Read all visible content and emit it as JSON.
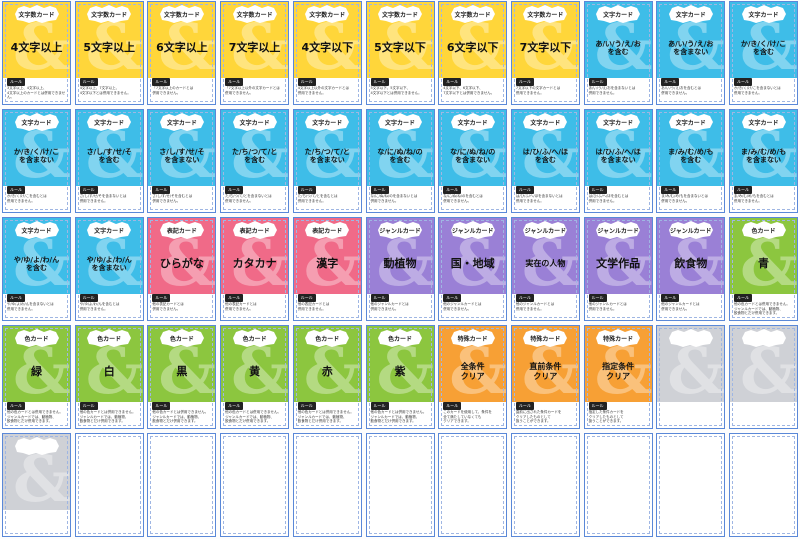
{
  "colors": {
    "yellow": "#ffd63a",
    "blue": "#3ebde8",
    "pink": "#f06a88",
    "purple": "#9a80d6",
    "green": "#8cc63f",
    "orange": "#f7a035",
    "gray": "#cfd1d6",
    "cut_line": "#e070a8",
    "bleed_line": "#5a88d8"
  },
  "rule_label": "ルール",
  "cards": [
    {
      "color": "yellow",
      "type": "文字数カード",
      "main": "4文字以上",
      "size": "big",
      "desc": "3文字以上、4文字以上、\n4文字以上のカードとは併用できません。"
    },
    {
      "color": "yellow",
      "type": "文字数カード",
      "main": "5文字以上",
      "size": "big",
      "desc": "4文字以上、7文字以上、\n4文字以下とは併用できません。"
    },
    {
      "color": "yellow",
      "type": "文字数カード",
      "main": "6文字以上",
      "size": "big",
      "desc": "「7文字以上のカードとは\n併用できません。"
    },
    {
      "color": "yellow",
      "type": "文字数カード",
      "main": "7文字以上",
      "size": "big",
      "desc": "「7文字以上以外の文字カードとは\n併用できません。"
    },
    {
      "color": "yellow",
      "type": "文字数カード",
      "main": "4文字以下",
      "size": "big",
      "desc": "4文字以上以外の文字カードとは\n併用できません。"
    },
    {
      "color": "yellow",
      "type": "文字数カード",
      "main": "5文字以下",
      "size": "big",
      "desc": "5文字以下、5文字以下、\n4文字以下とは併用できません。"
    },
    {
      "color": "yellow",
      "type": "文字数カード",
      "main": "6文字以下",
      "size": "big",
      "desc": "4文字以下、6文字以下、\n7文字以下とは併用できません。"
    },
    {
      "color": "yellow",
      "type": "文字数カード",
      "main": "7文字以下",
      "size": "big",
      "desc": "7文字以下の文字カードとは\n併用できません。"
    },
    {
      "color": "blue",
      "type": "文字カード",
      "main": "あ/い/う/え/お\nを含む",
      "size": "small",
      "desc": "あ/い/う/え/おを含まないとは\n併用できません。"
    },
    {
      "color": "blue",
      "type": "文字カード",
      "main": "あ/い/う/え/お\nを含まない",
      "size": "small",
      "desc": "あ/い/う/え/おを含むとは\n併用できません。"
    },
    {
      "color": "blue",
      "type": "文字カード",
      "main": "か/き/く/け/こ\nを含む",
      "size": "small",
      "desc": "か/き/く/け/こを含まないとは\n併用できません。"
    },
    {
      "color": "blue",
      "type": "文字カード",
      "main": "か/き/く/け/こ\nを含まない",
      "size": "small",
      "desc": "か/き/く/け/こを含むとは\n併用できません。"
    },
    {
      "color": "blue",
      "type": "文字カード",
      "main": "さ/し/す/せ/そ\nを含む",
      "size": "small",
      "desc": "さ/し/す/せ/そを含まないとは\n併用できません。"
    },
    {
      "color": "blue",
      "type": "文字カード",
      "main": "さ/し/す/せ/そ\nを含まない",
      "size": "small",
      "desc": "さ/し/す/せ/そを含むとは\n併用できません。"
    },
    {
      "color": "blue",
      "type": "文字カード",
      "main": "た/ち/つ/て/と\nを含む",
      "size": "small",
      "desc": "た/ち/つ/て/とを含まないとは\n併用できません。"
    },
    {
      "color": "blue",
      "type": "文字カード",
      "main": "た/ち/つ/て/と\nを含まない",
      "size": "small",
      "desc": "た/ち/つ/て/とを含むとは\n併用できません。"
    },
    {
      "color": "blue",
      "type": "文字カード",
      "main": "な/に/ぬ/ね/の\nを含む",
      "size": "small",
      "desc": "な/に/ぬ/ね/のを含まないとは\n併用できません。"
    },
    {
      "color": "blue",
      "type": "文字カード",
      "main": "な/に/ぬ/ね/の\nを含まない",
      "size": "small",
      "desc": "な/に/ぬ/ね/のを含むとは\n併用できません。"
    },
    {
      "color": "blue",
      "type": "文字カード",
      "main": "は/ひ/ふ/へ/ほ\nを含む",
      "size": "small",
      "desc": "は/ひ/ふ/へ/ほを含まないとは\n併用できません。"
    },
    {
      "color": "blue",
      "type": "文字カード",
      "main": "は/ひ/ふ/へ/ほ\nを含まない",
      "size": "small",
      "desc": "は/ひ/ふ/へ/ほを含むとは\n併用できません。"
    },
    {
      "color": "blue",
      "type": "文字カード",
      "main": "ま/み/む/め/も\nを含む",
      "size": "small",
      "desc": "ま/み/む/め/もを含まないとは\n併用できません。"
    },
    {
      "color": "blue",
      "type": "文字カード",
      "main": "ま/み/む/め/も\nを含まない",
      "size": "small",
      "desc": "ま/み/む/め/もを含むとは\n併用できません。"
    },
    {
      "color": "blue",
      "type": "文字カード",
      "main": "や/ゆ/よ/わ/ん\nを含む",
      "size": "small",
      "desc": "や/ゆ/よ/わ/んを含まないとは\n併用できません。"
    },
    {
      "color": "blue",
      "type": "文字カード",
      "main": "や/ゆ/よ/わ/ん\nを含まない",
      "size": "small",
      "desc": "や/ゆ/よ/わ/んを含むとは\n併用できません。"
    },
    {
      "color": "pink",
      "type": "表記カード",
      "main": "ひらがな",
      "size": "big",
      "desc": "他の表記カードとは\n併用できません。"
    },
    {
      "color": "pink",
      "type": "表記カード",
      "main": "カタカナ",
      "size": "big",
      "desc": "他の表記カードとは\n併用できません。"
    },
    {
      "color": "pink",
      "type": "表記カード",
      "main": "漢字",
      "size": "big",
      "desc": "他の表記カードとは\n併用できません。"
    },
    {
      "color": "purple",
      "type": "ジャンルカード",
      "main": "動植物",
      "size": "big",
      "desc": "他のジャンルカードとは\n併用できません。"
    },
    {
      "color": "purple",
      "type": "ジャンルカード",
      "main": "国・地域",
      "size": "big",
      "desc": "他のジャンルカードとは\n併用できません。"
    },
    {
      "color": "purple",
      "type": "ジャンルカード",
      "main": "実在の人物",
      "size": "mid",
      "desc": "他のジャンルカードとは\n併用できません。"
    },
    {
      "color": "purple",
      "type": "ジャンルカード",
      "main": "文学作品",
      "size": "big",
      "desc": "他のジャンルカードとは\n併用できません。"
    },
    {
      "color": "purple",
      "type": "ジャンルカード",
      "main": "飲食物",
      "size": "big",
      "desc": "他のジャンルカードとは\n併用できません。"
    },
    {
      "color": "green",
      "type": "色カード",
      "main": "青",
      "size": "big",
      "desc": "他の色カードとは併用できません。\nジャンルカードでは、動植物、\n飲食物とだけ併用できます。"
    },
    {
      "color": "green",
      "type": "色カード",
      "main": "緑",
      "size": "big",
      "desc": "他の色カードとは併用できません。\nジャンルカードでは、動植物、\n飲食物とだけ併用できます。"
    },
    {
      "color": "green",
      "type": "色カード",
      "main": "白",
      "size": "big",
      "desc": "他の色カードとは併用できません。\nジャンルカードでは、動植物、\n飲食物とだけ併用できます。"
    },
    {
      "color": "green",
      "type": "色カード",
      "main": "黒",
      "size": "big",
      "desc": "他の色カードとは併用できません。\nジャンルカードでは、動植物、\n飲食物とだけ併用できます。"
    },
    {
      "color": "green",
      "type": "色カード",
      "main": "黄",
      "size": "big",
      "desc": "他の色カードとは併用できません。\nジャンルカードでは、動植物、\n飲食物とだけ併用できます。"
    },
    {
      "color": "green",
      "type": "色カード",
      "main": "赤",
      "size": "big",
      "desc": "他の色カードとは併用できません。\nジャンルカードでは、動植物、\n飲食物とだけ併用できます。"
    },
    {
      "color": "green",
      "type": "色カード",
      "main": "紫",
      "size": "big",
      "desc": "他の色カードとは併用できません。\nジャンルカードでは、動植物、\n飲食物とだけ併用できます。"
    },
    {
      "color": "orange",
      "type": "特殊カード",
      "main": "全条件\nクリア",
      "size": "mid",
      "desc": "このカードを使用して、条件を\n全て満たしていなくても\nクリアできます。"
    },
    {
      "color": "orange",
      "type": "特殊カード",
      "main": "直前条件\nクリア",
      "size": "mid",
      "desc": "直前に出された条件カードを\nクリアしたものとして\n扱うことができます。"
    },
    {
      "color": "orange",
      "type": "特殊カード",
      "main": "指定条件\nクリア",
      "size": "mid",
      "desc": "指定した条件カードを\nクリアしたものとして\n扱うことができます。"
    },
    {
      "color": "gray",
      "type": "",
      "main": "",
      "size": "big",
      "desc": ""
    },
    {
      "color": "gray",
      "type": "",
      "main": "",
      "size": "big",
      "desc": ""
    },
    {
      "color": "gray",
      "type": "",
      "main": "",
      "size": "big",
      "desc": ""
    },
    {
      "color": "blank",
      "type": "",
      "main": "",
      "size": "big",
      "desc": ""
    },
    {
      "color": "blank",
      "type": "",
      "main": "",
      "size": "big",
      "desc": ""
    },
    {
      "color": "blank",
      "type": "",
      "main": "",
      "size": "big",
      "desc": ""
    },
    {
      "color": "blank",
      "type": "",
      "main": "",
      "size": "big",
      "desc": ""
    },
    {
      "color": "blank",
      "type": "",
      "main": "",
      "size": "big",
      "desc": ""
    },
    {
      "color": "blank",
      "type": "",
      "main": "",
      "size": "big",
      "desc": ""
    },
    {
      "color": "blank",
      "type": "",
      "main": "",
      "size": "big",
      "desc": ""
    },
    {
      "color": "blank",
      "type": "",
      "main": "",
      "size": "big",
      "desc": ""
    },
    {
      "color": "blank",
      "type": "",
      "main": "",
      "size": "big",
      "desc": ""
    },
    {
      "color": "blank",
      "type": "",
      "main": "",
      "size": "big",
      "desc": ""
    }
  ]
}
